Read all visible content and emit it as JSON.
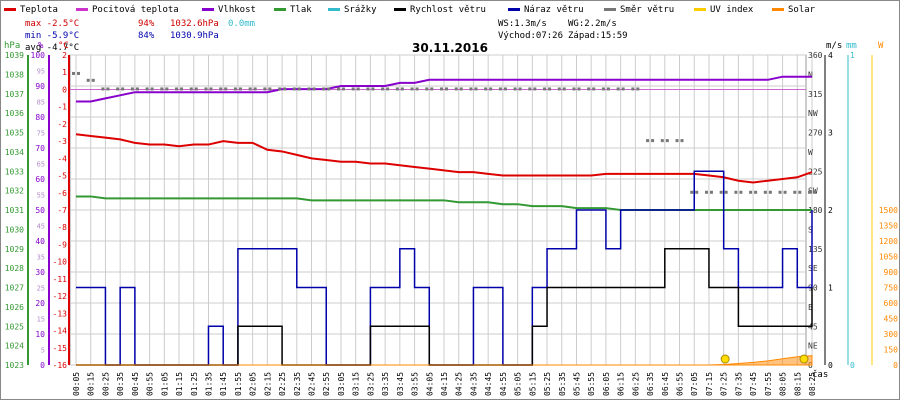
{
  "chart_data": {
    "type": "line",
    "title": "30.11.2016",
    "legend": [
      {
        "name": "Teplota",
        "color": "#dd0000"
      },
      {
        "name": "Pocitová teplota",
        "color": "#cc33cc"
      },
      {
        "name": "Vlhkost",
        "color": "#8800cc"
      },
      {
        "name": "Tlak",
        "color": "#339933"
      },
      {
        "name": "Srážky",
        "color": "#33bbcc"
      },
      {
        "name": "Rychlost větru",
        "color": "#000000"
      },
      {
        "name": "Náraz větru",
        "color": "#0000aa"
      },
      {
        "name": "Směr větru",
        "color": "#777777"
      },
      {
        "name": "UV index",
        "color": "#ffcc00"
      },
      {
        "name": "Solar",
        "color": "#ff8800"
      }
    ],
    "stats": {
      "max_temp": "max -2.5°C",
      "max_hum": "94%",
      "max_press": "1032.6hPa",
      "rain": "0.0mm",
      "min_temp": "min -5.9°C",
      "min_hum": "84%",
      "min_press": "1030.9hPa",
      "avg_temp": "avg -4.7°C",
      "ws": "WS:1.3m/s",
      "wg": "WG:2.2m/s",
      "sunrise": "Východ:07:26",
      "sunset": "Západ:15:59"
    },
    "axes": {
      "hpa": {
        "label": "hPa",
        "ticks": [
          "1039",
          "1038",
          "1037",
          "1036",
          "1035",
          "1034",
          "1033",
          "1032",
          "1031",
          "1030",
          "1029",
          "1028",
          "1027",
          "1026",
          "1025",
          "1024",
          "1023"
        ]
      },
      "pct": {
        "label": "%",
        "ticks": [
          "100",
          "90",
          "80",
          "70",
          "60",
          "50",
          "40",
          "30",
          "20",
          "10",
          "0"
        ]
      },
      "pct_minor": {
        "ticks": [
          "95",
          "85",
          "75",
          "65",
          "55",
          "45",
          "35",
          "25",
          "15",
          "5"
        ]
      },
      "degc": {
        "label": "°C",
        "ticks": [
          "2",
          "1",
          "0",
          "-1",
          "-2",
          "-3",
          "-4",
          "-5",
          "-6",
          "-7",
          "-8",
          "-9",
          "-10",
          "-11",
          "-12",
          "-13",
          "-14",
          "-15",
          "-16"
        ]
      },
      "dir": {
        "ticks": [
          "360",
          "N",
          "315",
          "NW",
          "270",
          "W",
          "225",
          "SW",
          "180",
          "S",
          "135",
          "SE",
          "90",
          "E",
          "45",
          "NE",
          "0"
        ]
      },
      "ms": {
        "label": "m/s",
        "ticks": [
          "4",
          "3",
          "2",
          "1",
          "0"
        ]
      },
      "mm": {
        "label": "mm",
        "ticks": [
          "1",
          "0"
        ]
      },
      "w": {
        "label": "W",
        "ticks": [
          "1500",
          "1350",
          "1200",
          "1050",
          "900",
          "750",
          "600",
          "450",
          "300",
          "150",
          "0"
        ]
      },
      "time": {
        "label": "čas",
        "ticks": [
          "00:05",
          "00:15",
          "00:25",
          "00:35",
          "00:45",
          "00:55",
          "01:05",
          "01:15",
          "01:25",
          "01:35",
          "01:45",
          "01:55",
          "02:05",
          "02:15",
          "02:25",
          "02:35",
          "02:45",
          "02:55",
          "03:05",
          "03:15",
          "03:25",
          "03:35",
          "03:45",
          "03:55",
          "04:05",
          "04:15",
          "04:25",
          "04:35",
          "04:45",
          "04:55",
          "05:05",
          "05:15",
          "05:25",
          "05:35",
          "05:45",
          "05:55",
          "06:05",
          "06:15",
          "06:25",
          "06:35",
          "06:45",
          "06:55",
          "07:05",
          "07:15",
          "07:25",
          "07:35",
          "07:45",
          "07:55",
          "08:05",
          "08:15",
          "08:25"
        ]
      }
    },
    "series": {
      "temperature": {
        "name": "Teplota",
        "values": [
          -2.6,
          -2.7,
          -2.8,
          -2.9,
          -3.1,
          -3.2,
          -3.2,
          -3.3,
          -3.2,
          -3.2,
          -3.0,
          -3.1,
          -3.1,
          -3.5,
          -3.6,
          -3.8,
          -4.0,
          -4.1,
          -4.2,
          -4.2,
          -4.3,
          -4.3,
          -4.4,
          -4.5,
          -4.6,
          -4.7,
          -4.8,
          -4.8,
          -4.9,
          -5.0,
          -5.0,
          -5.0,
          -5.0,
          -5.0,
          -5.0,
          -5.0,
          -4.9,
          -4.9,
          -4.9,
          -4.9,
          -4.9,
          -4.9,
          -4.9,
          -5.0,
          -5.1,
          -5.3,
          -5.4,
          -5.3,
          -5.2,
          -5.1,
          -4.8
        ]
      },
      "humidity": {
        "name": "Vlhkost",
        "values": [
          85,
          85,
          86,
          87,
          88,
          88,
          88,
          88,
          88,
          88,
          88,
          88,
          88,
          88,
          89,
          89,
          89,
          89,
          90,
          90,
          90,
          90,
          91,
          91,
          92,
          92,
          92,
          92,
          92,
          92,
          92,
          92,
          92,
          92,
          92,
          92,
          92,
          92,
          92,
          92,
          92,
          92,
          92,
          92,
          92,
          92,
          92,
          92,
          93,
          93,
          93
        ]
      },
      "pressure": {
        "name": "Tlak",
        "values": [
          1031.7,
          1031.7,
          1031.6,
          1031.6,
          1031.6,
          1031.6,
          1031.6,
          1031.6,
          1031.6,
          1031.6,
          1031.6,
          1031.6,
          1031.6,
          1031.6,
          1031.6,
          1031.6,
          1031.5,
          1031.5,
          1031.5,
          1031.5,
          1031.5,
          1031.5,
          1031.5,
          1031.5,
          1031.5,
          1031.5,
          1031.4,
          1031.4,
          1031.4,
          1031.3,
          1031.3,
          1031.2,
          1031.2,
          1031.2,
          1031.1,
          1031.1,
          1031.1,
          1031.0,
          1031.0,
          1031.0,
          1031.0,
          1031.0,
          1031.0,
          1031.0,
          1031.0,
          1031.0,
          1031.0,
          1031.0,
          1031.0,
          1031.0,
          1031.0
        ]
      },
      "wind_dir": {
        "name": "Směr větru",
        "values": [
          338,
          330,
          320,
          320,
          320,
          320,
          320,
          320,
          320,
          320,
          320,
          320,
          320,
          320,
          320,
          320,
          320,
          320,
          320,
          320,
          320,
          320,
          320,
          320,
          320,
          320,
          320,
          320,
          320,
          320,
          320,
          320,
          320,
          320,
          320,
          320,
          320,
          320,
          320,
          260,
          260,
          260,
          200,
          200,
          200,
          200,
          200,
          200,
          200,
          200,
          200
        ]
      },
      "wind_gust": {
        "name": "Náraz větru",
        "values": [
          1.0,
          1.0,
          0.0,
          1.0,
          0.0,
          0.0,
          0.0,
          0.0,
          0.0,
          0.5,
          0.0,
          1.5,
          1.5,
          1.5,
          1.5,
          1.0,
          1.0,
          0.0,
          0.0,
          0.0,
          1.0,
          1.0,
          1.5,
          1.0,
          0.0,
          0.0,
          0.0,
          1.0,
          1.0,
          0.0,
          0.0,
          1.0,
          1.5,
          1.5,
          2.0,
          2.0,
          1.5,
          2.0,
          2.0,
          2.0,
          2.0,
          2.0,
          2.5,
          2.5,
          1.5,
          1.0,
          1.0,
          1.0,
          1.5,
          1.0,
          2.0
        ]
      },
      "wind_speed": {
        "name": "Rychlost větru",
        "values": [
          0.0,
          0.0,
          0.0,
          0.0,
          0.0,
          0.0,
          0.0,
          0.0,
          0.0,
          0.0,
          0.0,
          0.5,
          0.5,
          0.5,
          0.0,
          0.0,
          0.0,
          0.0,
          0.0,
          0.0,
          0.5,
          0.5,
          0.5,
          0.5,
          0.0,
          0.0,
          0.0,
          0.0,
          0.0,
          0.0,
          0.0,
          0.5,
          1.0,
          1.0,
          1.0,
          1.0,
          1.0,
          1.0,
          1.0,
          1.0,
          1.5,
          1.5,
          1.5,
          1.0,
          1.0,
          0.5,
          0.5,
          0.5,
          0.5,
          0.5,
          1.0
        ]
      },
      "solar": {
        "name": "Solar",
        "values": [
          0,
          0,
          0,
          0,
          0,
          0,
          0,
          0,
          0,
          0,
          0,
          0,
          0,
          0,
          0,
          0,
          0,
          0,
          0,
          0,
          0,
          0,
          0,
          0,
          0,
          0,
          0,
          0,
          0,
          0,
          0,
          0,
          0,
          0,
          0,
          0,
          0,
          0,
          0,
          0,
          0,
          0,
          0,
          0,
          5,
          15,
          25,
          40,
          60,
          80,
          90
        ]
      }
    },
    "markers": {
      "sunrise_time": "07:26",
      "sunset_time": "08:30"
    }
  }
}
